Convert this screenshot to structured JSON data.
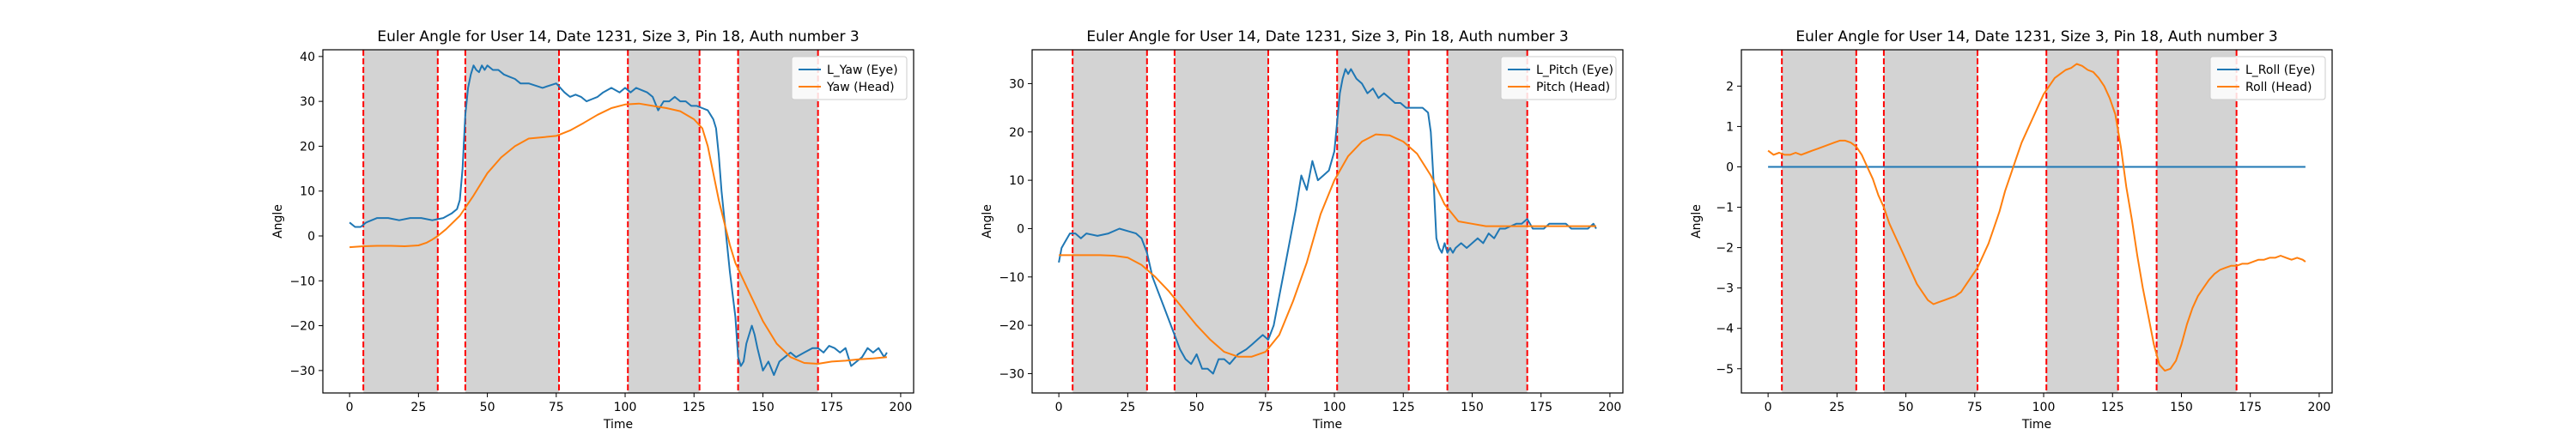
{
  "chart_data": [
    {
      "type": "line",
      "title": "Euler Angle for User 14, Date 1231, Size 3, Pin 18, Auth number 3",
      "xlabel": "Time",
      "ylabel": "Angle",
      "xlim": [
        -9.7,
        204.7
      ],
      "ylim": [
        -35,
        41.5
      ],
      "xticks": [
        0,
        25,
        50,
        75,
        100,
        125,
        150,
        175,
        200
      ],
      "yticks": [
        -30,
        -20,
        -10,
        0,
        10,
        20,
        30,
        40
      ],
      "grid": false,
      "legend": "top-right",
      "shaded_intervals": [
        [
          5,
          32
        ],
        [
          42,
          76
        ],
        [
          101,
          127
        ],
        [
          141,
          170
        ]
      ],
      "vlines": [
        5,
        32,
        42,
        76,
        101,
        127,
        141,
        170
      ],
      "series": [
        {
          "name": "L_Yaw (Eye)",
          "color": "#1f77b4",
          "x": [
            0,
            2,
            4,
            6,
            8,
            10,
            14,
            18,
            22,
            26,
            30,
            34,
            37,
            39,
            40,
            41,
            42,
            43,
            44,
            45,
            46,
            47,
            48,
            49,
            50,
            52,
            54,
            56,
            58,
            60,
            62,
            65,
            70,
            75,
            78,
            80,
            82,
            84,
            86,
            88,
            90,
            92,
            95,
            98,
            100,
            102,
            104,
            106,
            108,
            110,
            112,
            114,
            116,
            118,
            120,
            122,
            124,
            126,
            128,
            130,
            131,
            132,
            133,
            134,
            135,
            136,
            137,
            138,
            139,
            140,
            141,
            142,
            143,
            144,
            145,
            146,
            147,
            148,
            150,
            152,
            154,
            156,
            158,
            160,
            162,
            165,
            168,
            170,
            172,
            174,
            176,
            178,
            180,
            182,
            184,
            186,
            188,
            190,
            192,
            194,
            195
          ],
          "values": [
            3,
            2,
            2,
            3,
            3.5,
            4,
            4,
            3.5,
            4,
            4,
            3.5,
            4,
            5,
            6,
            8,
            15,
            27,
            33,
            36,
            38,
            37,
            36.5,
            38,
            37,
            38,
            37,
            37,
            36,
            35.5,
            35,
            34,
            34,
            33,
            34,
            32,
            31,
            31.5,
            31,
            30,
            30.5,
            31,
            32,
            33,
            32,
            33,
            32,
            33,
            32.5,
            32,
            31,
            28,
            30,
            30,
            31,
            30,
            30,
            29,
            29,
            28.5,
            28,
            27,
            26,
            24,
            18,
            10,
            4,
            -2,
            -8,
            -13,
            -18,
            -27,
            -29,
            -28,
            -24,
            -22,
            -20,
            -22,
            -25,
            -30,
            -28,
            -31,
            -28,
            -27,
            -26,
            -27,
            -26,
            -25,
            -25,
            -26,
            -24.5,
            -25,
            -26,
            -25,
            -29,
            -28,
            -27,
            -25,
            -26,
            -25,
            -27,
            -26
          ]
        },
        {
          "name": "Yaw (Head)",
          "color": "#ff7f0e",
          "x": [
            0,
            5,
            10,
            15,
            20,
            25,
            28,
            30,
            32,
            35,
            40,
            45,
            50,
            55,
            60,
            65,
            70,
            75,
            80,
            85,
            90,
            95,
            100,
            105,
            110,
            115,
            120,
            125,
            128,
            130,
            132,
            134,
            136,
            138,
            140,
            145,
            150,
            155,
            160,
            165,
            170,
            175,
            180,
            185,
            190,
            195
          ],
          "values": [
            -2.5,
            -2.3,
            -2.2,
            -2.2,
            -2.3,
            -2.1,
            -1.5,
            -0.8,
            0,
            1.5,
            4.5,
            9,
            14,
            17.5,
            20,
            21.7,
            22,
            22.3,
            23.5,
            25.2,
            27,
            28.5,
            29.3,
            29.5,
            29,
            28.5,
            27.8,
            26,
            24,
            20,
            14,
            8,
            3,
            -2,
            -6,
            -12.5,
            -19,
            -24,
            -27,
            -28.3,
            -28.5,
            -28,
            -27.8,
            -27.5,
            -27.3,
            -27
          ]
        }
      ]
    },
    {
      "type": "line",
      "title": "Euler Angle for User 14, Date 1231, Size 3, Pin 18, Auth number 3",
      "xlabel": "Time",
      "ylabel": "Angle",
      "xlim": [
        -9.7,
        204.7
      ],
      "ylim": [
        -34,
        37
      ],
      "xticks": [
        0,
        25,
        50,
        75,
        100,
        125,
        150,
        175,
        200
      ],
      "yticks": [
        -30,
        -20,
        -10,
        0,
        10,
        20,
        30
      ],
      "grid": false,
      "legend": "top-right",
      "shaded_intervals": [
        [
          5,
          32
        ],
        [
          42,
          76
        ],
        [
          101,
          127
        ],
        [
          141,
          170
        ]
      ],
      "vlines": [
        5,
        32,
        42,
        76,
        101,
        127,
        141,
        170
      ],
      "series": [
        {
          "name": "L_Pitch (Eye)",
          "color": "#1f77b4",
          "x": [
            0,
            1,
            2,
            4,
            6,
            8,
            10,
            14,
            18,
            22,
            25,
            28,
            30,
            32,
            34,
            36,
            38,
            40,
            42,
            44,
            46,
            48,
            50,
            52,
            54,
            56,
            58,
            60,
            62,
            65,
            68,
            70,
            72,
            74,
            76,
            78,
            80,
            82,
            84,
            86,
            88,
            90,
            92,
            94,
            96,
            98,
            99,
            100,
            101,
            102,
            103,
            104,
            105,
            106,
            108,
            110,
            112,
            114,
            116,
            118,
            120,
            122,
            124,
            126,
            128,
            130,
            132,
            134,
            135,
            136,
            137,
            138,
            139,
            140,
            141,
            142,
            143,
            144,
            146,
            148,
            150,
            152,
            154,
            156,
            158,
            160,
            162,
            164,
            166,
            168,
            170,
            172,
            174,
            176,
            178,
            180,
            182,
            184,
            186,
            188,
            190,
            192,
            194,
            195
          ],
          "values": [
            -7,
            -4,
            -3,
            -1,
            -1,
            -2,
            -1,
            -1.5,
            -1,
            0,
            -0.5,
            -1,
            -2,
            -5,
            -10,
            -13,
            -16,
            -19,
            -22,
            -25,
            -27,
            -28,
            -26,
            -29,
            -29,
            -30,
            -27,
            -27,
            -28,
            -26,
            -25,
            -24,
            -23,
            -22,
            -23,
            -20,
            -14,
            -8,
            -2,
            4,
            11,
            8,
            14,
            10,
            11,
            12,
            14,
            16,
            22,
            28,
            31,
            33,
            32,
            33,
            31,
            30,
            28,
            29,
            27,
            28,
            27,
            26,
            26,
            25,
            25,
            25,
            25,
            24,
            20,
            10,
            -2,
            -4,
            -5,
            -3,
            -5,
            -4,
            -5,
            -4,
            -3,
            -4,
            -3,
            -2,
            -3,
            -1,
            -2,
            0,
            0,
            0.5,
            1,
            1,
            2,
            0,
            0,
            0,
            1,
            1,
            1,
            1,
            0,
            0,
            0,
            0,
            1,
            0
          ]
        },
        {
          "name": "Pitch (Head)",
          "color": "#ff7f0e",
          "x": [
            0,
            5,
            10,
            15,
            20,
            25,
            30,
            35,
            40,
            45,
            50,
            55,
            60,
            65,
            70,
            75,
            80,
            85,
            90,
            95,
            100,
            105,
            110,
            115,
            120,
            125,
            130,
            135,
            140,
            145,
            150,
            155,
            160,
            165,
            170,
            175,
            180,
            185,
            190,
            195
          ],
          "values": [
            -5.5,
            -5.5,
            -5.5,
            -5.5,
            -5.6,
            -6,
            -7.5,
            -10,
            -13,
            -16.5,
            -20,
            -23,
            -25.5,
            -26.5,
            -26.5,
            -25.5,
            -22,
            -15,
            -7,
            3,
            10,
            15,
            18,
            19.5,
            19.3,
            18,
            15.5,
            11,
            5,
            1.5,
            1,
            0.5,
            0.5,
            0.5,
            0.5,
            0.5,
            0.5,
            0.5,
            0.5,
            0.5
          ]
        }
      ]
    },
    {
      "type": "line",
      "title": "Euler Angle for User 14, Date 1231, Size 3, Pin 18, Auth number 3",
      "xlabel": "Time",
      "ylabel": "Angle",
      "xlim": [
        -9.7,
        204.7
      ],
      "ylim": [
        -5.6,
        2.9
      ],
      "xticks": [
        0,
        25,
        50,
        75,
        100,
        125,
        150,
        175,
        200
      ],
      "yticks": [
        -5,
        -4,
        -3,
        -2,
        -1,
        0,
        1,
        2
      ],
      "grid": false,
      "legend": "top-right",
      "shaded_intervals": [
        [
          5,
          32
        ],
        [
          42,
          76
        ],
        [
          101,
          127
        ],
        [
          141,
          170
        ]
      ],
      "vlines": [
        5,
        32,
        42,
        76,
        101,
        127,
        141,
        170
      ],
      "series": [
        {
          "name": "L_Roll (Eye)",
          "color": "#1f77b4",
          "x": [
            0,
            195
          ],
          "values": [
            0,
            0
          ]
        },
        {
          "name": "Roll (Head)",
          "color": "#ff7f0e",
          "x": [
            0,
            2,
            4,
            6,
            8,
            10,
            12,
            14,
            16,
            18,
            20,
            22,
            24,
            26,
            28,
            30,
            32,
            34,
            36,
            38,
            40,
            42,
            44,
            46,
            48,
            50,
            52,
            54,
            56,
            58,
            60,
            62,
            64,
            66,
            68,
            70,
            72,
            74,
            76,
            78,
            80,
            82,
            84,
            86,
            88,
            90,
            92,
            94,
            96,
            98,
            100,
            102,
            104,
            106,
            108,
            110,
            112,
            114,
            116,
            118,
            120,
            122,
            124,
            126,
            128,
            130,
            132,
            134,
            136,
            138,
            140,
            142,
            144,
            146,
            148,
            150,
            152,
            154,
            156,
            158,
            160,
            162,
            164,
            166,
            168,
            170,
            172,
            174,
            176,
            178,
            180,
            182,
            184,
            186,
            188,
            190,
            192,
            194,
            195
          ],
          "values": [
            0.4,
            0.3,
            0.35,
            0.3,
            0.3,
            0.35,
            0.3,
            0.35,
            0.4,
            0.45,
            0.5,
            0.55,
            0.6,
            0.65,
            0.65,
            0.6,
            0.5,
            0.3,
            0.0,
            -0.3,
            -0.7,
            -1.0,
            -1.4,
            -1.7,
            -2.0,
            -2.3,
            -2.6,
            -2.9,
            -3.1,
            -3.3,
            -3.4,
            -3.35,
            -3.3,
            -3.25,
            -3.2,
            -3.1,
            -2.9,
            -2.7,
            -2.5,
            -2.2,
            -1.9,
            -1.5,
            -1.1,
            -0.6,
            -0.2,
            0.2,
            0.6,
            0.9,
            1.2,
            1.5,
            1.8,
            2.0,
            2.2,
            2.3,
            2.4,
            2.45,
            2.55,
            2.5,
            2.4,
            2.35,
            2.2,
            2.0,
            1.7,
            1.3,
            0.5,
            -0.5,
            -1.3,
            -2.2,
            -3.0,
            -3.7,
            -4.4,
            -4.9,
            -5.05,
            -5.0,
            -4.8,
            -4.4,
            -3.9,
            -3.5,
            -3.2,
            -3.0,
            -2.8,
            -2.65,
            -2.55,
            -2.5,
            -2.45,
            -2.45,
            -2.4,
            -2.4,
            -2.35,
            -2.3,
            -2.3,
            -2.25,
            -2.25,
            -2.2,
            -2.25,
            -2.3,
            -2.25,
            -2.3,
            -2.35
          ]
        }
      ]
    }
  ]
}
